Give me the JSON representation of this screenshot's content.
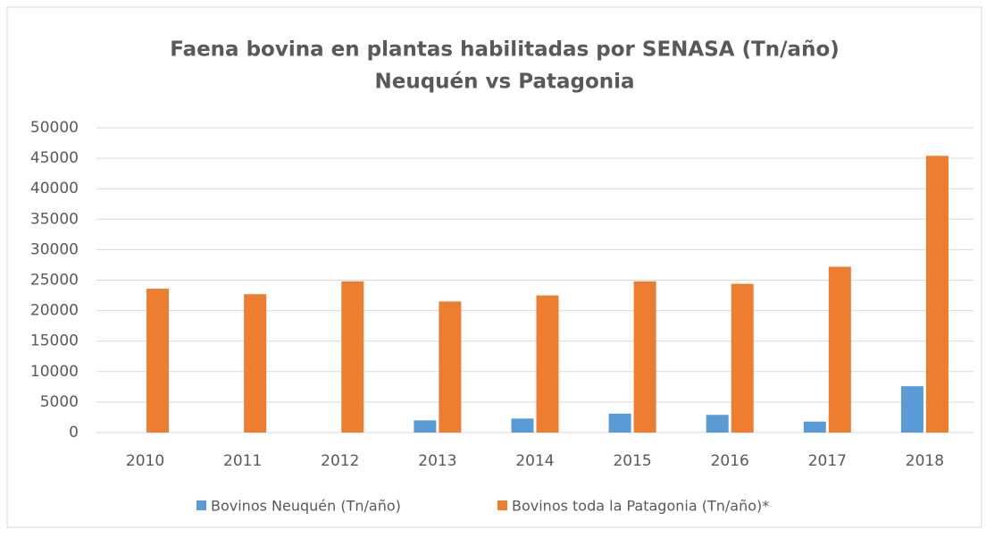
{
  "chart_data": {
    "type": "bar",
    "title": "Faena bovina en plantas habilitadas por SENASA (Tn/año)",
    "subtitle": "Neuquén vs Patagonia",
    "categories": [
      "2010",
      "2011",
      "2012",
      "2013",
      "2014",
      "2015",
      "2016",
      "2017",
      "2018"
    ],
    "series": [
      {
        "name": "Bovinos Neuquén (Tn/año)",
        "color": "#5b9bd5",
        "values": [
          0,
          0,
          0,
          2000,
          2300,
          3100,
          2900,
          1800,
          7600
        ]
      },
      {
        "name": "Bovinos toda la Patagonia (Tn/año)*",
        "color": "#ed7d31",
        "values": [
          23600,
          22700,
          24800,
          21500,
          22500,
          24800,
          24400,
          27200,
          45400
        ]
      }
    ],
    "ylim": [
      0,
      50000
    ],
    "yticks": [
      0,
      5000,
      10000,
      15000,
      20000,
      25000,
      30000,
      35000,
      40000,
      45000,
      50000
    ],
    "grid": true,
    "legend": "bottom"
  }
}
